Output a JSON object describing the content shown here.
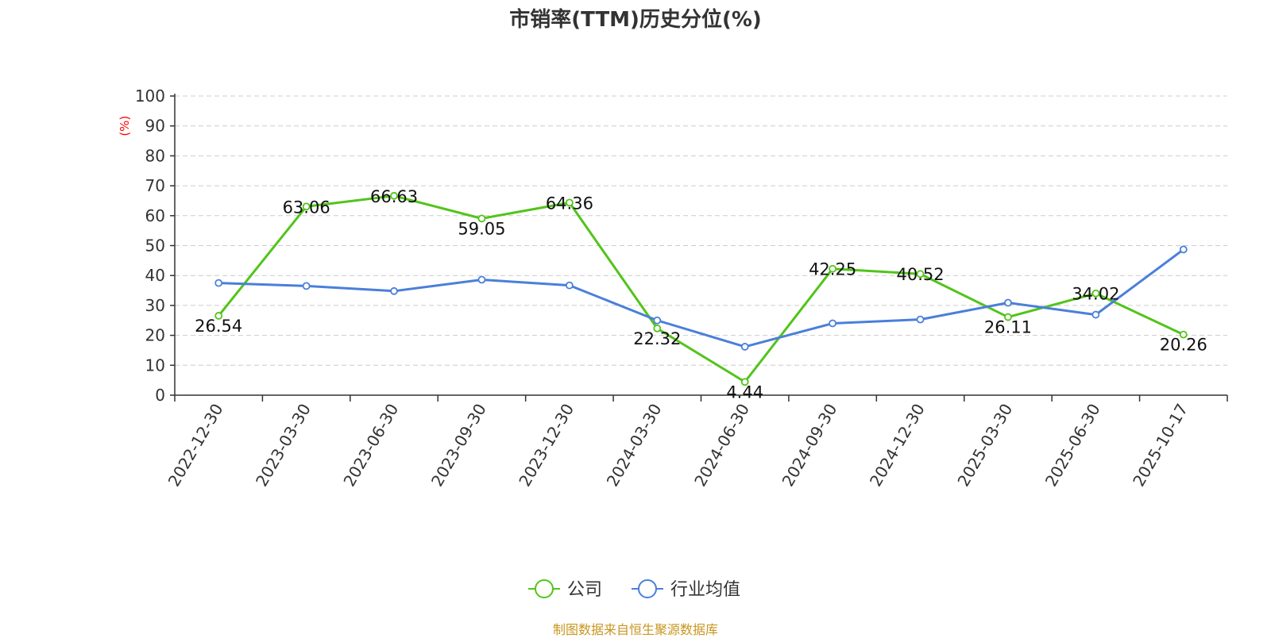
{
  "title": "市销率(TTM)历史分位(%)",
  "footer": "制图数据来自恒生聚源数据库",
  "colors": {
    "company": "#52c41a",
    "industry": "#4a7fdb",
    "y_unit": "#ff0000",
    "footer": "#c8961e"
  },
  "chart_data": {
    "type": "line",
    "title": "市销率(TTM)历史分位(%)",
    "ylabel": "(%)",
    "xlabel": "",
    "ylim": [
      0,
      100
    ],
    "yticks": [
      0,
      10,
      20,
      30,
      40,
      50,
      60,
      70,
      80,
      90,
      100
    ],
    "grid": true,
    "legend_position": "bottom-center",
    "categories": [
      "2022-12-30",
      "2023-03-30",
      "2023-06-30",
      "2023-09-30",
      "2023-12-30",
      "2024-03-30",
      "2024-06-30",
      "2024-09-30",
      "2024-12-30",
      "2025-03-30",
      "2025-06-30",
      "2025-10-17"
    ],
    "series": [
      {
        "name": "公司",
        "values": [
          26.54,
          63.06,
          66.63,
          59.05,
          64.36,
          22.32,
          4.44,
          42.25,
          40.52,
          26.11,
          34.02,
          20.26
        ],
        "labels": [
          "26.54",
          "63.06",
          "66.63",
          "59.05",
          "64.36",
          "22.32",
          "4.44",
          "42.25",
          "40.52",
          "26.11",
          "34.02",
          "20.26"
        ]
      },
      {
        "name": "行业均值",
        "values": [
          37.5,
          36.5,
          34.8,
          38.6,
          36.7,
          25.0,
          16.2,
          24.0,
          25.3,
          30.9,
          26.9,
          48.7
        ]
      }
    ]
  }
}
